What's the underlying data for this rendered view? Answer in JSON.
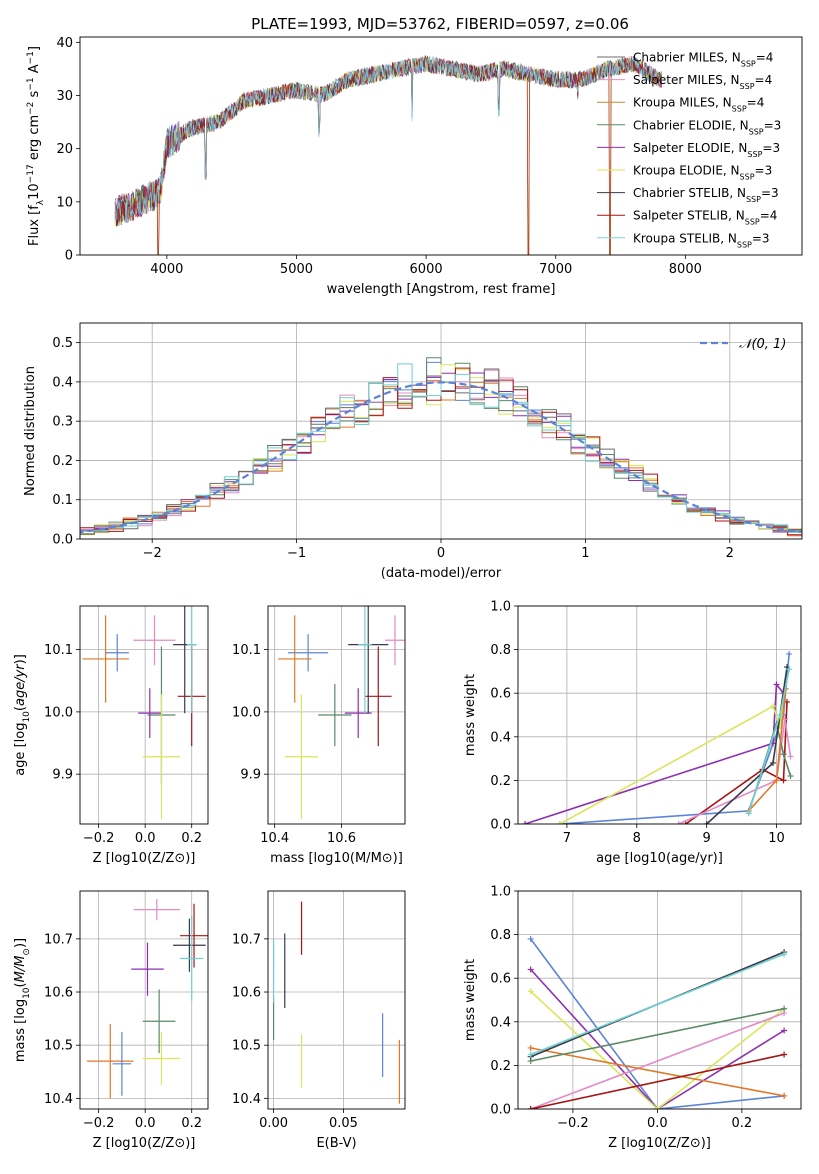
{
  "figure_title": "PLATE=1993, MJD=53762, FIBERID=0597, z=0.06",
  "series_colors": {
    "Chabrier MILES": "#6b6b6b",
    "Salpeter MILES": "#e48bc6",
    "Kroupa MILES": "#c98a2b",
    "Chabrier ELODIE": "#5a8a66",
    "Salpeter ELODIE": "#8e2eb3",
    "Kroupa ELODIE": "#d9e65a",
    "Chabrier STELIB": "#3a3a4a",
    "Salpeter STELIB": "#a61414",
    "Kroupa STELIB": "#7fcfe6",
    "blue": "#5b84d9",
    "orange": "#e07828",
    "cyan": "#6fd0d0"
  },
  "chart_data": [
    {
      "id": "spectrum",
      "type": "line",
      "title": "PLATE=1993, MJD=53762, FIBERID=0597, z=0.06",
      "xlabel": "wavelength [Angstrom, rest frame]",
      "ylabel": "Flux [f_λ 10^−17 erg cm^−2 s^−1 A^−1]",
      "xlim": [
        3330,
        8900
      ],
      "ylim": [
        0,
        41
      ],
      "xticks": [
        4000,
        5000,
        6000,
        7000,
        8000
      ],
      "yticks": [
        0,
        10,
        20,
        30,
        40
      ],
      "grid": false,
      "legend_placement": "right",
      "legend": [
        {
          "name": "Chabrier MILES",
          "label": "Chabrier MILES, N_SSP=4"
        },
        {
          "name": "Salpeter MILES",
          "label": "Salpeter MILES, N_SSP=4"
        },
        {
          "name": "Kroupa MILES",
          "label": "Kroupa MILES, N_SSP=4"
        },
        {
          "name": "Chabrier ELODIE",
          "label": "Chabrier ELODIE, N_SSP=3"
        },
        {
          "name": "Salpeter ELODIE",
          "label": "Salpeter ELODIE, N_SSP=3"
        },
        {
          "name": "Kroupa ELODIE",
          "label": "Kroupa ELODIE, N_SSP=3"
        },
        {
          "name": "Chabrier STELIB",
          "label": "Chabrier STELIB, N_SSP=3"
        },
        {
          "name": "Salpeter STELIB",
          "label": "Salpeter STELIB, N_SSP=4"
        },
        {
          "name": "Kroupa STELIB",
          "label": "Kroupa STELIB, N_SSP=3"
        }
      ],
      "continuum": {
        "x": [
          3600,
          3800,
          3950,
          4000,
          4200,
          4400,
          4600,
          4800,
          5000,
          5200,
          5400,
          5600,
          5800,
          6000,
          6200,
          6400,
          6600,
          6800,
          7000,
          7200,
          7400,
          7600,
          7800
        ],
        "y": [
          8,
          10,
          12,
          21,
          24,
          25,
          29,
          30,
          31,
          30,
          33,
          34,
          35,
          36,
          35,
          34,
          35,
          34,
          33,
          33,
          35,
          36,
          33
        ]
      },
      "dips": [
        {
          "x": 3934,
          "to": 0
        },
        {
          "x": 4300,
          "to": 14
        },
        {
          "x": 5175,
          "to": 22
        },
        {
          "x": 5892,
          "to": 25
        },
        {
          "x": 6563,
          "to": 26
        },
        {
          "x": 6790,
          "to": 0
        },
        {
          "x": 7170,
          "to": 29
        },
        {
          "x": 7420,
          "to": 0
        }
      ]
    },
    {
      "id": "residuals",
      "type": "histogram",
      "xlabel": "(data-model)/error",
      "ylabel": "Normed distribution",
      "xlim": [
        -2.5,
        2.5
      ],
      "ylim": [
        0,
        0.55
      ],
      "xticks": [
        -2,
        -1,
        0,
        1,
        2
      ],
      "yticks": [
        0.0,
        0.1,
        0.2,
        0.3,
        0.4,
        0.5
      ],
      "grid": true,
      "bin_edges_range": [
        -2.6,
        2.6
      ],
      "bin_width": 0.1,
      "reference_curve": {
        "name": "normal",
        "label": "𝒩(0, 1)",
        "mean": 0,
        "sigma": 1
      },
      "legend_placement": "top-right"
    },
    {
      "id": "age_vs_Z",
      "type": "scatter",
      "xlabel": "Z [log10(Z/Z⊙)]",
      "ylabel": "age [log10(age/yr)]",
      "xlim": [
        -0.28,
        0.27
      ],
      "ylim": [
        9.82,
        10.17
      ],
      "xticks": [
        -0.2,
        0.0,
        0.2
      ],
      "yticks": [
        9.9,
        10.0,
        10.1
      ],
      "grid": true,
      "points": [
        {
          "name": "blue",
          "x": -0.12,
          "y": 10.095,
          "xerr": 0.05,
          "yerr": 0.03
        },
        {
          "name": "orange",
          "x": -0.17,
          "y": 10.085,
          "xerr": 0.1,
          "yerr": 0.07
        },
        {
          "name": "Salpeter MILES",
          "x": 0.04,
          "y": 10.115,
          "xerr": 0.09,
          "yerr": 0.04
        },
        {
          "name": "Chabrier ELODIE",
          "x": 0.07,
          "y": 9.995,
          "xerr": 0.06,
          "yerr": 0.11
        },
        {
          "name": "Salpeter ELODIE",
          "x": 0.02,
          "y": 9.998,
          "xerr": 0.05,
          "yerr": 0.04
        },
        {
          "name": "Kroupa ELODIE",
          "x": 0.07,
          "y": 9.928,
          "xerr": 0.08,
          "yerr": 0.1
        },
        {
          "name": "Chabrier STELIB",
          "x": 0.17,
          "y": 10.108,
          "xerr": 0.05,
          "yerr": 0.11
        },
        {
          "name": "Salpeter STELIB",
          "x": 0.2,
          "y": 10.025,
          "xerr": 0.06,
          "yerr": 0.08
        },
        {
          "name": "cyan",
          "x": 0.2,
          "y": 10.108,
          "xerr": 0.02,
          "yerr": 0.11
        }
      ]
    },
    {
      "id": "age_vs_mass",
      "type": "scatter",
      "xlabel": "mass [log10(M/M⊙)]",
      "ylabel": "",
      "xlim": [
        10.38,
        10.79
      ],
      "ylim": [
        9.82,
        10.17
      ],
      "xticks": [
        10.4,
        10.6
      ],
      "yticks": [
        9.9,
        10.0,
        10.1
      ],
      "grid": true,
      "points": [
        {
          "name": "blue",
          "x": 10.5,
          "y": 10.095,
          "xerr": 0.06,
          "yerr": 0.03
        },
        {
          "name": "orange",
          "x": 10.46,
          "y": 10.085,
          "xerr": 0.05,
          "yerr": 0.07
        },
        {
          "name": "Chabrier ELODIE",
          "x": 10.58,
          "y": 9.995,
          "xerr": 0.05,
          "yerr": 0.05
        },
        {
          "name": "Salpeter ELODIE",
          "x": 10.65,
          "y": 9.998,
          "xerr": 0.04,
          "yerr": 0.04
        },
        {
          "name": "Kroupa ELODIE",
          "x": 10.48,
          "y": 9.928,
          "xerr": 0.05,
          "yerr": 0.1
        },
        {
          "name": "Chabrier STELIB",
          "x": 10.68,
          "y": 10.108,
          "xerr": 0.06,
          "yerr": 0.11
        },
        {
          "name": "Salpeter STELIB",
          "x": 10.71,
          "y": 10.025,
          "xerr": 0.04,
          "yerr": 0.08
        },
        {
          "name": "Salpeter MILES",
          "x": 10.76,
          "y": 10.115,
          "xerr": 0.03,
          "yerr": 0.04
        },
        {
          "name": "cyan",
          "x": 10.67,
          "y": 10.108,
          "xerr": 0.02,
          "yerr": 0.11
        }
      ]
    },
    {
      "id": "weight_vs_age",
      "type": "line",
      "xlabel": "age [log10(age/yr)]",
      "ylabel": "mass weight",
      "xlim": [
        6.3,
        10.35
      ],
      "ylim": [
        0,
        1
      ],
      "xticks": [
        7,
        8,
        9,
        10
      ],
      "yticks": [
        0.0,
        0.2,
        0.4,
        0.6,
        0.8,
        1.0
      ],
      "grid": true,
      "series": [
        {
          "name": "blue",
          "x": [
            6.9,
            9.6,
            10.1,
            10.18
          ],
          "y": [
            0.0,
            0.06,
            0.5,
            0.78
          ]
        },
        {
          "name": "Salpeter ELODIE",
          "x": [
            6.4,
            9.95,
            10.0,
            10.1
          ],
          "y": [
            0.0,
            0.37,
            0.64,
            0.6
          ]
        },
        {
          "name": "Kroupa ELODIE",
          "x": [
            6.9,
            9.95,
            10.05,
            10.12
          ],
          "y": [
            0.0,
            0.54,
            0.45,
            0.6
          ]
        },
        {
          "name": "Salpeter STELIB",
          "x": [
            8.7,
            9.8,
            10.1,
            10.15
          ],
          "y": [
            0.0,
            0.25,
            0.2,
            0.56
          ]
        },
        {
          "name": "Salpeter MILES",
          "x": [
            8.6,
            10.0,
            10.12,
            10.2
          ],
          "y": [
            0.0,
            0.2,
            0.48,
            0.31
          ]
        },
        {
          "name": "Chabrier ELODIE",
          "x": [
            9.6,
            10.0,
            10.1,
            10.2
          ],
          "y": [
            0.05,
            0.46,
            0.32,
            0.22
          ]
        },
        {
          "name": "orange",
          "x": [
            9.6,
            10.0,
            10.13
          ],
          "y": [
            0.06,
            0.2,
            0.62
          ]
        },
        {
          "name": "Chabrier STELIB",
          "x": [
            9.0,
            9.95,
            10.15
          ],
          "y": [
            0.0,
            0.28,
            0.72
          ]
        },
        {
          "name": "cyan",
          "x": [
            9.6,
            10.05,
            10.18
          ],
          "y": [
            0.05,
            0.5,
            0.71
          ]
        }
      ]
    },
    {
      "id": "mass_vs_Z",
      "type": "scatter",
      "xlabel": "Z [log10(Z/Z⊙)]",
      "ylabel": "mass [log10(M/M⊙)]",
      "xlim": [
        -0.28,
        0.27
      ],
      "ylim": [
        10.38,
        10.79
      ],
      "xticks": [
        -0.2,
        0.0,
        0.2
      ],
      "yticks": [
        10.4,
        10.5,
        10.6,
        10.7
      ],
      "grid": true,
      "points": [
        {
          "name": "orange",
          "x": -0.15,
          "y": 10.47,
          "xerr": 0.1,
          "yerr": 0.07
        },
        {
          "name": "blue",
          "x": -0.1,
          "y": 10.465,
          "xerr": 0.04,
          "yerr": 0.06
        },
        {
          "name": "Kroupa ELODIE",
          "x": 0.07,
          "y": 10.475,
          "xerr": 0.08,
          "yerr": 0.05
        },
        {
          "name": "Chabrier ELODIE",
          "x": 0.06,
          "y": 10.545,
          "xerr": 0.07,
          "yerr": 0.06
        },
        {
          "name": "Salpeter ELODIE",
          "x": 0.01,
          "y": 10.643,
          "xerr": 0.07,
          "yerr": 0.05
        },
        {
          "name": "Salpeter MILES",
          "x": 0.05,
          "y": 10.755,
          "xerr": 0.1,
          "yerr": 0.02
        },
        {
          "name": "Chabrier STELIB",
          "x": 0.19,
          "y": 10.688,
          "xerr": 0.07,
          "yerr": 0.05
        },
        {
          "name": "Salpeter STELIB",
          "x": 0.21,
          "y": 10.706,
          "xerr": 0.06,
          "yerr": 0.06
        },
        {
          "name": "cyan",
          "x": 0.2,
          "y": 10.663,
          "xerr": 0.05,
          "yerr": 0.08
        }
      ]
    },
    {
      "id": "mass_vs_EBV",
      "type": "scatter",
      "xlabel": "E(B-V)",
      "ylabel": "",
      "xlim": [
        -0.004,
        0.094
      ],
      "ylim": [
        10.38,
        10.79
      ],
      "xticks": [
        0.0,
        0.05
      ],
      "yticks": [
        10.4,
        10.5,
        10.6,
        10.7
      ],
      "grid": true,
      "points": [
        {
          "name": "Chabrier ELODIE",
          "x": 0.0,
          "y": 10.55,
          "yerr": 0.04
        },
        {
          "name": "Salpeter MILES",
          "x": 0.0,
          "y": 10.67,
          "yerr": 0.02
        },
        {
          "name": "cyan",
          "x": 0.0,
          "y": 10.64,
          "yerr": 0.06
        },
        {
          "name": "Chabrier STELIB",
          "x": 0.008,
          "y": 10.64,
          "yerr": 0.07
        },
        {
          "name": "Salpeter STELIB",
          "x": 0.02,
          "y": 10.72,
          "yerr": 0.05
        },
        {
          "name": "Kroupa ELODIE",
          "x": 0.02,
          "y": 10.47,
          "yerr": 0.05
        },
        {
          "name": "blue",
          "x": 0.078,
          "y": 10.5,
          "yerr": 0.06
        },
        {
          "name": "orange",
          "x": 0.09,
          "y": 10.45,
          "yerr": 0.06
        }
      ]
    },
    {
      "id": "weight_vs_Z",
      "type": "line",
      "xlabel": "Z [log10(Z/Z⊙)]",
      "ylabel": "mass weight",
      "xlim": [
        -0.33,
        0.34
      ],
      "ylim": [
        0,
        1
      ],
      "xticks": [
        -0.2,
        0.0,
        0.2
      ],
      "yticks": [
        0.0,
        0.2,
        0.4,
        0.6,
        0.8,
        1.0
      ],
      "grid": true,
      "series": [
        {
          "name": "blue",
          "x": [
            -0.3,
            0.0,
            0.3
          ],
          "y": [
            0.78,
            0.0,
            0.06
          ]
        },
        {
          "name": "Salpeter ELODIE",
          "x": [
            -0.3,
            0.0,
            0.3
          ],
          "y": [
            0.64,
            0.0,
            0.36
          ]
        },
        {
          "name": "Kroupa ELODIE",
          "x": [
            -0.3,
            0.0,
            0.3
          ],
          "y": [
            0.54,
            0.0,
            0.46
          ]
        },
        {
          "name": "Salpeter MILES",
          "x": [
            -0.3,
            0.3
          ],
          "y": [
            0.0,
            0.44
          ]
        },
        {
          "name": "orange",
          "x": [
            -0.3,
            0.3
          ],
          "y": [
            0.28,
            0.06
          ]
        },
        {
          "name": "Chabrier ELODIE",
          "x": [
            -0.3,
            0.3
          ],
          "y": [
            0.22,
            0.46
          ]
        },
        {
          "name": "Salpeter STELIB",
          "x": [
            -0.3,
            0.3
          ],
          "y": [
            0.0,
            0.25
          ]
        },
        {
          "name": "Chabrier STELIB",
          "x": [
            -0.3,
            0.3
          ],
          "y": [
            0.24,
            0.72
          ]
        },
        {
          "name": "cyan",
          "x": [
            -0.3,
            0.3
          ],
          "y": [
            0.25,
            0.71
          ]
        }
      ]
    }
  ]
}
